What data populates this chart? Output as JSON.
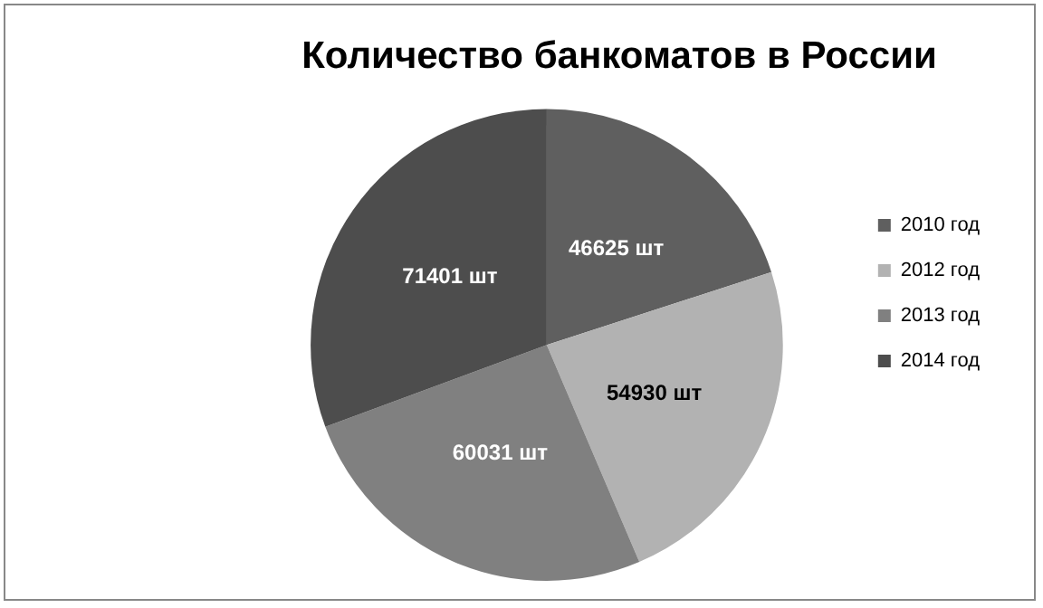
{
  "chart_data": {
    "type": "pie",
    "title": "Количество банкоматов в России",
    "categories": [
      "2010 год",
      "2012 год",
      "2013 год",
      "2014 год"
    ],
    "values": [
      46625,
      54930,
      60031,
      71401
    ],
    "colors": [
      "#5f5f5f",
      "#b2b2b2",
      "#808080",
      "#4d4d4d"
    ],
    "value_labels": [
      "46625 шт",
      "54930 шт",
      "60031 шт",
      "71401 шт"
    ],
    "legend": "right"
  }
}
